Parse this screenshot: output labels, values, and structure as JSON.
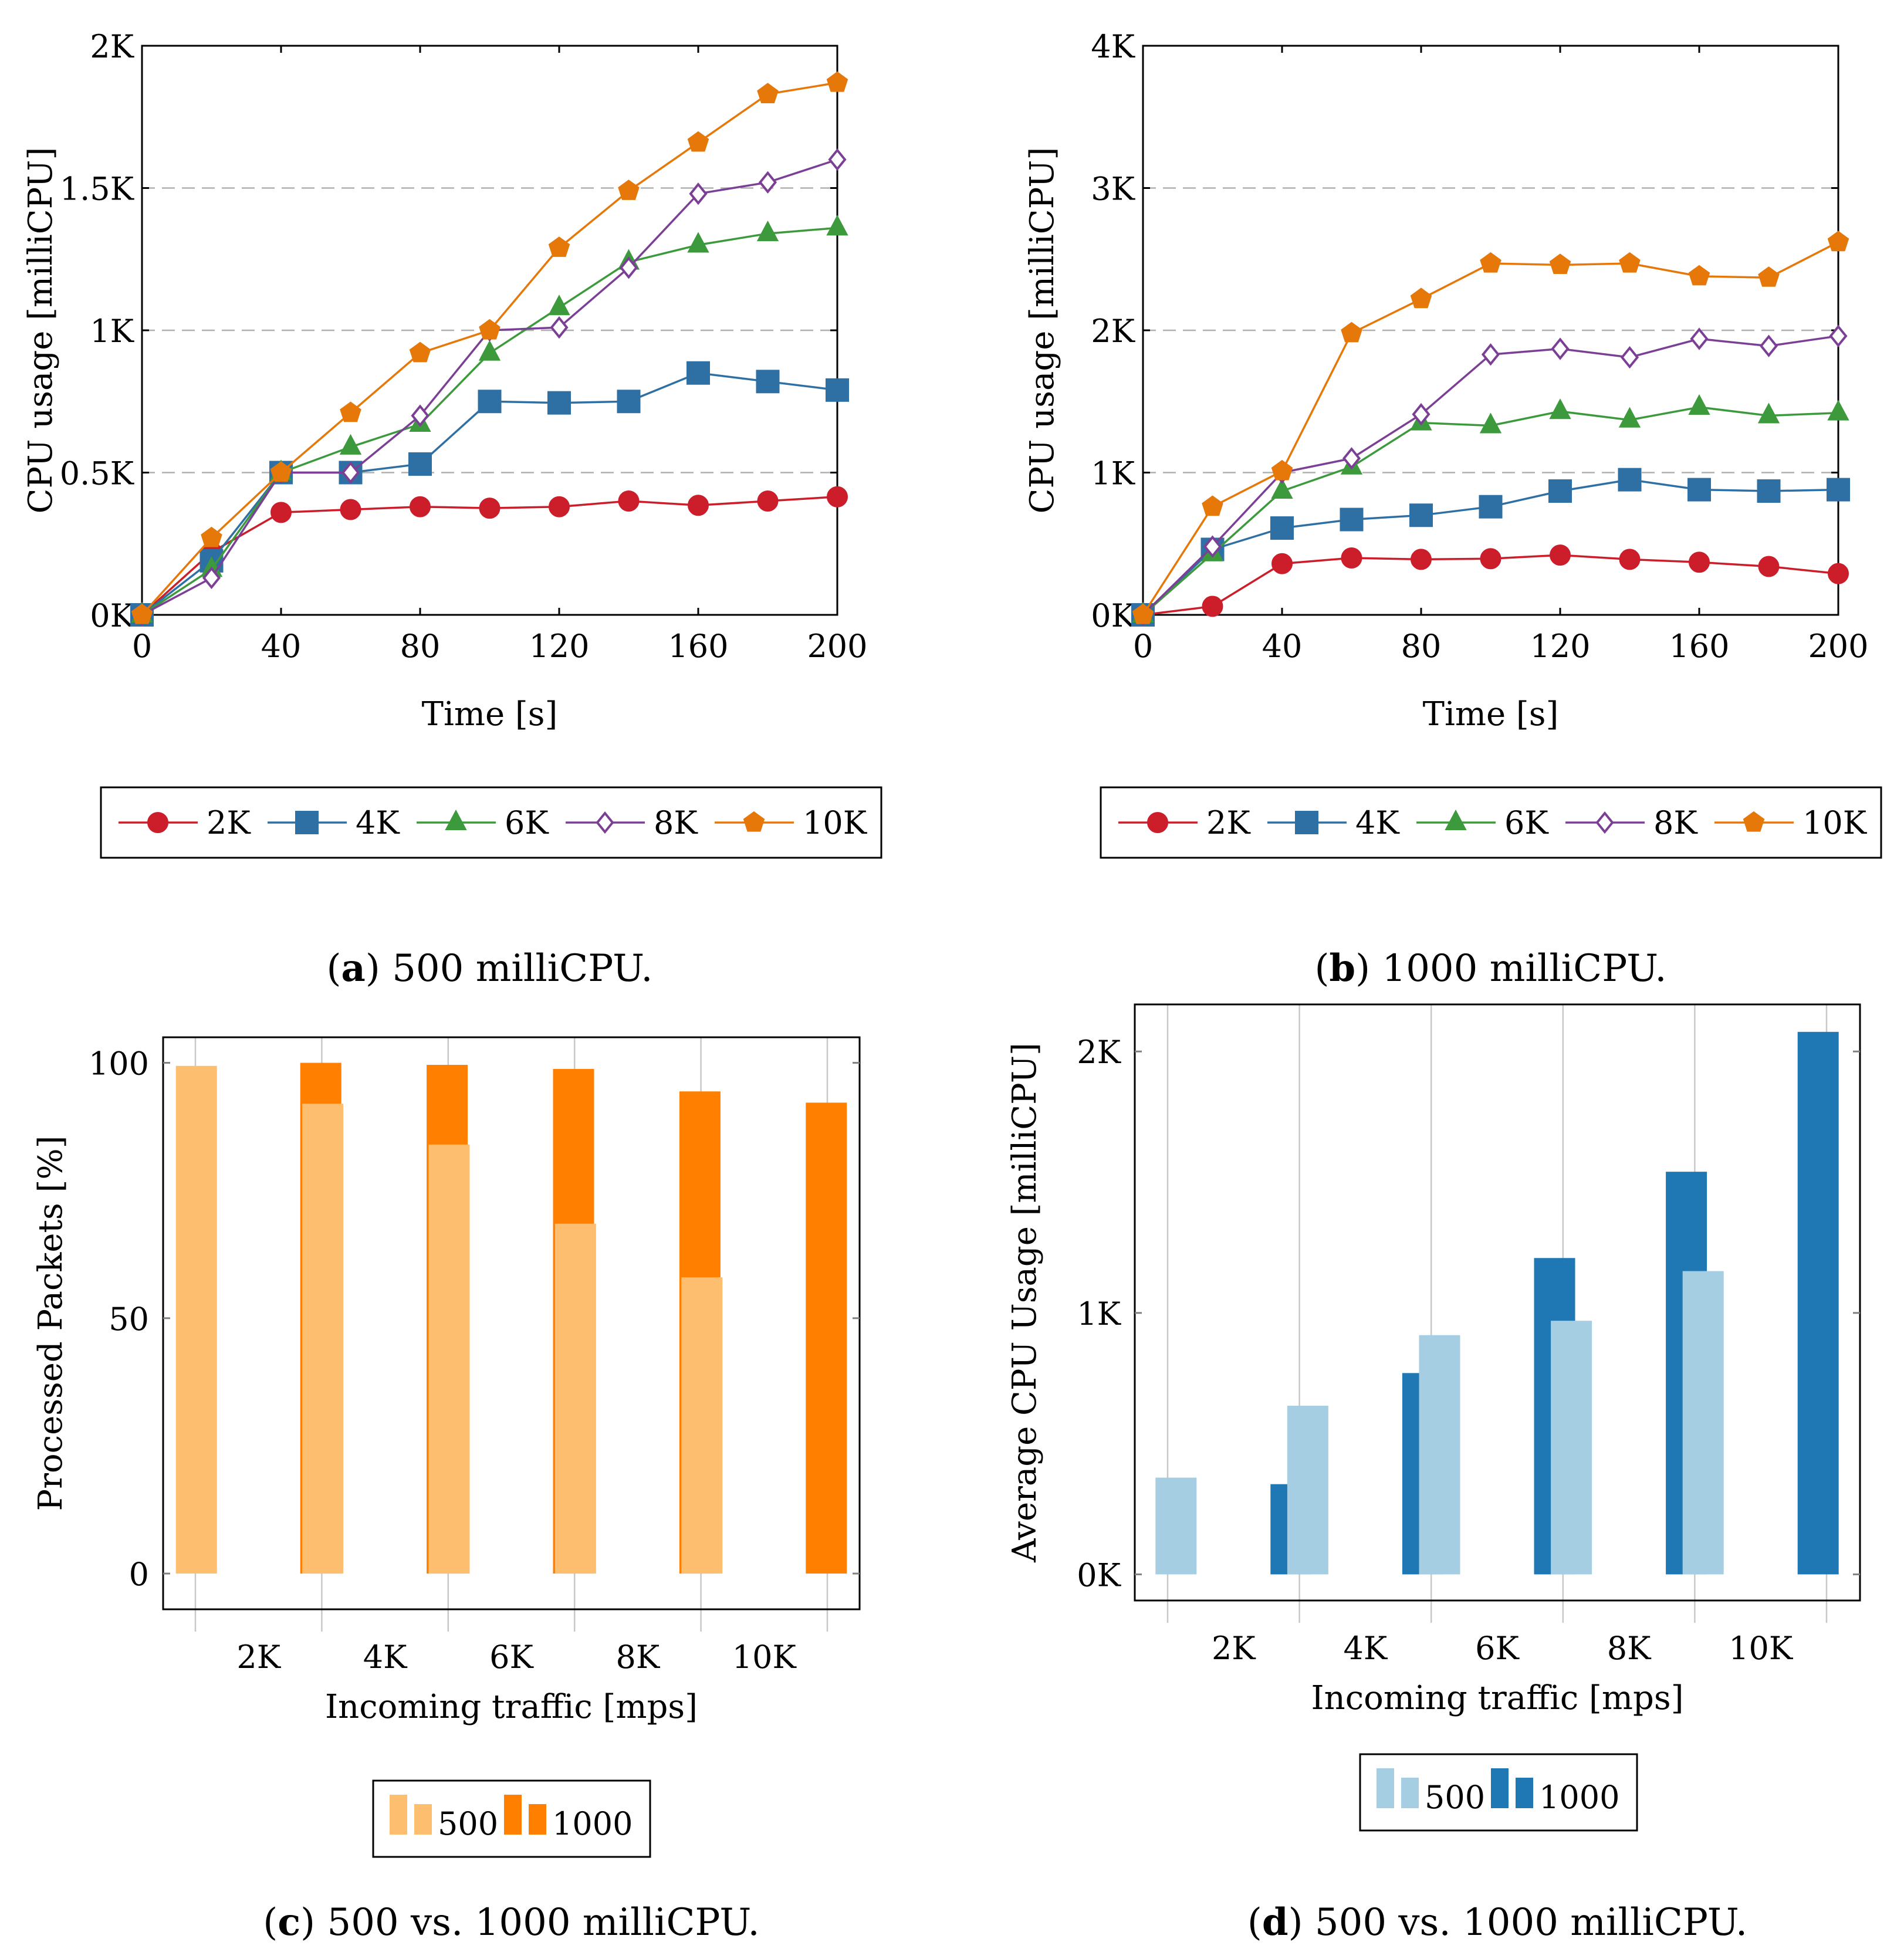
{
  "chart_data": [
    {
      "id": "a",
      "type": "line",
      "caption_letter": "a",
      "caption_text": " 500 milliCPU.",
      "xlabel": "Time [s]",
      "ylabel": "CPU usage [milliCPU]",
      "xlim": [
        0,
        200
      ],
      "ylim": [
        0,
        2000
      ],
      "xticks": [
        0,
        40,
        80,
        120,
        160,
        200
      ],
      "yticks": [
        0,
        500,
        1000,
        1500,
        2000
      ],
      "yticklabels": [
        "0K",
        "0.5K",
        "1K",
        "1.5K",
        "2K"
      ],
      "grid": "horizontal-dashed",
      "x": [
        0,
        20,
        40,
        60,
        80,
        100,
        120,
        140,
        160,
        180,
        200
      ],
      "series": [
        {
          "name": "2K",
          "color": "#cc1d2b",
          "marker": "circle",
          "values": [
            0,
            220,
            360,
            370,
            380,
            375,
            380,
            400,
            385,
            400,
            415
          ]
        },
        {
          "name": "4K",
          "color": "#2e6fa4",
          "marker": "square",
          "values": [
            0,
            190,
            500,
            500,
            530,
            750,
            745,
            750,
            850,
            820,
            790
          ]
        },
        {
          "name": "6K",
          "color": "#3c9a3c",
          "marker": "triangle",
          "values": [
            0,
            160,
            500,
            590,
            670,
            920,
            1080,
            1240,
            1300,
            1340,
            1360
          ]
        },
        {
          "name": "8K",
          "color": "#7b3f95",
          "marker": "diamond",
          "values": [
            0,
            130,
            500,
            500,
            700,
            1000,
            1010,
            1220,
            1480,
            1520,
            1600
          ]
        },
        {
          "name": "10K",
          "color": "#e6780a",
          "marker": "pentagon",
          "values": [
            0,
            270,
            500,
            710,
            920,
            1000,
            1290,
            1490,
            1660,
            1830,
            1870
          ]
        }
      ]
    },
    {
      "id": "b",
      "type": "line",
      "caption_letter": "b",
      "caption_text": " 1000 milliCPU.",
      "xlabel": "Time [s]",
      "ylabel": "CPU usage [milliCPU]",
      "xlim": [
        0,
        200
      ],
      "ylim": [
        0,
        4000
      ],
      "xticks": [
        0,
        40,
        80,
        120,
        160,
        200
      ],
      "yticks": [
        0,
        1000,
        2000,
        3000,
        4000
      ],
      "yticklabels": [
        "0K",
        "1K",
        "2K",
        "3K",
        "4K"
      ],
      "grid": "horizontal-dashed",
      "x": [
        0,
        20,
        40,
        60,
        80,
        100,
        120,
        140,
        160,
        180,
        200
      ],
      "series": [
        {
          "name": "2K",
          "color": "#cc1d2b",
          "marker": "circle",
          "values": [
            0,
            60,
            360,
            400,
            390,
            395,
            420,
            390,
            370,
            340,
            290
          ]
        },
        {
          "name": "4K",
          "color": "#2e6fa4",
          "marker": "square",
          "values": [
            0,
            460,
            610,
            670,
            700,
            760,
            870,
            950,
            880,
            870,
            880
          ]
        },
        {
          "name": "6K",
          "color": "#3c9a3c",
          "marker": "triangle",
          "values": [
            0,
            430,
            870,
            1040,
            1350,
            1330,
            1430,
            1370,
            1460,
            1400,
            1420
          ]
        },
        {
          "name": "8K",
          "color": "#7b3f95",
          "marker": "diamond",
          "values": [
            0,
            480,
            1000,
            1100,
            1410,
            1830,
            1870,
            1810,
            1940,
            1890,
            1960
          ]
        },
        {
          "name": "10K",
          "color": "#e6780a",
          "marker": "pentagon",
          "values": [
            0,
            760,
            1010,
            1980,
            2220,
            2470,
            2460,
            2470,
            2380,
            2370,
            2620
          ]
        }
      ]
    },
    {
      "id": "c",
      "type": "bar",
      "caption_letter": "c",
      "caption_text": " 500 vs. 1000 milliCPU.",
      "xlabel": "Incoming traffic [mps]",
      "ylabel": "Processed Packets [%]",
      "categories": [
        "2K",
        "4K",
        "6K",
        "8K",
        "10K"
      ],
      "ylim": [
        -7,
        105
      ],
      "yticks": [
        0,
        50,
        100
      ],
      "yticklabels": [
        "0",
        "50",
        "100"
      ],
      "grid": "vertical-category",
      "series": [
        {
          "name": "500",
          "color": "#fdbf6f",
          "values": [
            99.4,
            92,
            84,
            68.5,
            58
          ]
        },
        {
          "name": "1000",
          "color": "#ff7f00",
          "values": [
            100,
            99.6,
            98.8,
            94.4,
            92.2
          ]
        }
      ]
    },
    {
      "id": "d",
      "type": "bar",
      "caption_letter": "d",
      "caption_text": " 500 vs. 1000 milliCPU.",
      "xlabel": "Incoming traffic [mps]",
      "ylabel": "Average CPU Usage [milliCPU]",
      "categories": [
        "2K",
        "4K",
        "6K",
        "8K",
        "10K"
      ],
      "ylim": [
        -100,
        2180
      ],
      "yticks": [
        0,
        1000,
        2000
      ],
      "yticklabels": [
        "0K",
        "1K",
        "2K"
      ],
      "grid": "vertical-category",
      "series": [
        {
          "name": "500",
          "color": "#a6cee3",
          "values": [
            370,
            645,
            915,
            970,
            1160
          ]
        },
        {
          "name": "1000",
          "color": "#1f78b4",
          "values": [
            345,
            770,
            1210,
            1540,
            2075
          ]
        }
      ]
    }
  ]
}
